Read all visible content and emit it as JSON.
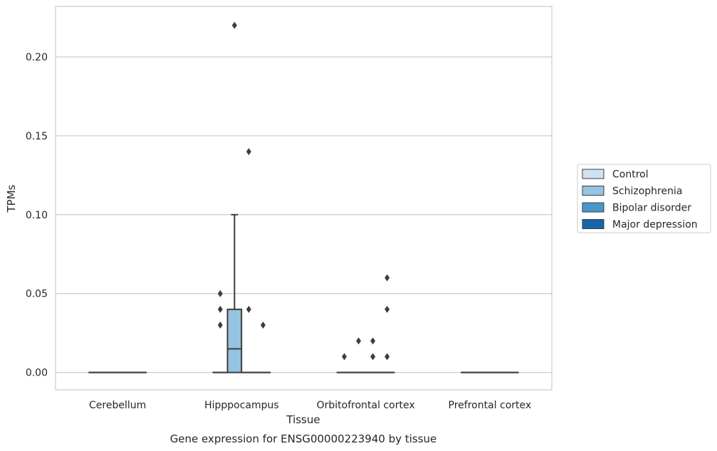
{
  "chart_data": {
    "type": "box",
    "title": "Gene expression for ENSG00000223940 by tissue",
    "xlabel": "Tissue",
    "ylabel": "TPMs",
    "ylim": [
      -0.011,
      0.232
    ],
    "yticks": [
      0.0,
      0.05,
      0.1,
      0.15,
      0.2
    ],
    "ytick_labels": [
      "0.00",
      "0.05",
      "0.10",
      "0.15",
      "0.20"
    ],
    "grid": "horizontal",
    "legend_position": "right",
    "categories": [
      "Cerebellum",
      "Hipppocampus",
      "Orbitofrontal cortex",
      "Prefrontal cortex"
    ],
    "series": [
      {
        "name": "Control",
        "color": "#d0e1f2"
      },
      {
        "name": "Schizophrenia",
        "color": "#94c4df"
      },
      {
        "name": "Bipolar disorder",
        "color": "#4a98c9"
      },
      {
        "name": "Major depression",
        "color": "#1764ab"
      }
    ],
    "boxes": [
      {
        "category": 0,
        "series": 0,
        "q1": 0,
        "median": 0,
        "q3": 0,
        "whisker_low": 0,
        "whisker_high": 0,
        "outliers": []
      },
      {
        "category": 0,
        "series": 1,
        "q1": 0,
        "median": 0,
        "q3": 0,
        "whisker_low": 0,
        "whisker_high": 0,
        "outliers": []
      },
      {
        "category": 0,
        "series": 2,
        "q1": 0,
        "median": 0,
        "q3": 0,
        "whisker_low": 0,
        "whisker_high": 0,
        "outliers": []
      },
      {
        "category": 0,
        "series": 3,
        "q1": 0,
        "median": 0,
        "q3": 0,
        "whisker_low": 0,
        "whisker_high": 0,
        "outliers": []
      },
      {
        "category": 1,
        "series": 0,
        "q1": 0,
        "median": 0,
        "q3": 0,
        "whisker_low": 0,
        "whisker_high": 0,
        "outliers": [
          0.03,
          0.04,
          0.05
        ]
      },
      {
        "category": 1,
        "series": 1,
        "q1": 0,
        "median": 0.015,
        "q3": 0.04,
        "whisker_low": 0,
        "whisker_high": 0.1,
        "outliers": [
          0.22
        ]
      },
      {
        "category": 1,
        "series": 2,
        "q1": 0,
        "median": 0,
        "q3": 0,
        "whisker_low": 0,
        "whisker_high": 0,
        "outliers": [
          0.04,
          0.14
        ]
      },
      {
        "category": 1,
        "series": 3,
        "q1": 0,
        "median": 0,
        "q3": 0,
        "whisker_low": 0,
        "whisker_high": 0,
        "outliers": [
          0.03
        ]
      },
      {
        "category": 2,
        "series": 0,
        "q1": 0,
        "median": 0,
        "q3": 0,
        "whisker_low": 0,
        "whisker_high": 0,
        "outliers": [
          0.01
        ]
      },
      {
        "category": 2,
        "series": 1,
        "q1": 0,
        "median": 0,
        "q3": 0,
        "whisker_low": 0,
        "whisker_high": 0,
        "outliers": [
          0.02
        ]
      },
      {
        "category": 2,
        "series": 2,
        "q1": 0,
        "median": 0,
        "q3": 0,
        "whisker_low": 0,
        "whisker_high": 0,
        "outliers": [
          0.01,
          0.02
        ]
      },
      {
        "category": 2,
        "series": 3,
        "q1": 0,
        "median": 0,
        "q3": 0,
        "whisker_low": 0,
        "whisker_high": 0,
        "outliers": [
          0.01,
          0.04,
          0.06
        ]
      },
      {
        "category": 3,
        "series": 0,
        "q1": 0,
        "median": 0,
        "q3": 0,
        "whisker_low": 0,
        "whisker_high": 0,
        "outliers": []
      },
      {
        "category": 3,
        "series": 1,
        "q1": 0,
        "median": 0,
        "q3": 0,
        "whisker_low": 0,
        "whisker_high": 0,
        "outliers": []
      },
      {
        "category": 3,
        "series": 2,
        "q1": 0,
        "median": 0,
        "q3": 0,
        "whisker_low": 0,
        "whisker_high": 0,
        "outliers": []
      },
      {
        "category": 3,
        "series": 3,
        "q1": 0,
        "median": 0,
        "q3": 0,
        "whisker_low": 0,
        "whisker_high": 0,
        "outliers": []
      }
    ]
  }
}
